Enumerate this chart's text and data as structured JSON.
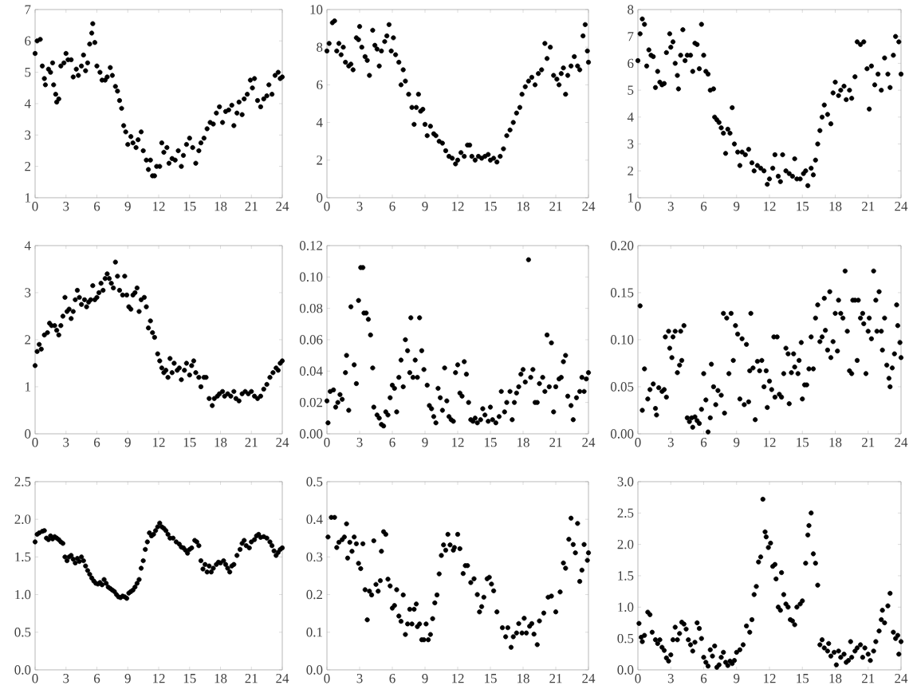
{
  "chart_data": [
    {
      "type": "scatter",
      "marker": "circle",
      "color": "#000000",
      "xlim": [
        0,
        24
      ],
      "xticks": [
        0,
        3,
        6,
        9,
        12,
        15,
        18,
        21,
        24
      ],
      "ylim": [
        1,
        7
      ],
      "yticks": [
        1,
        2,
        3,
        4,
        5,
        6,
        7
      ],
      "x": [
        0.0,
        0.2,
        0.5,
        0.7,
        0.9,
        1.0,
        1.3,
        1.5,
        1.7,
        1.8,
        2.0,
        2.1,
        2.3,
        2.5,
        2.8,
        3.0,
        3.2,
        3.5,
        3.7,
        4.0,
        4.2,
        4.5,
        4.7,
        4.9,
        5.1,
        5.3,
        5.5,
        5.6,
        5.8,
        6.0,
        6.3,
        6.5,
        6.8,
        7.0,
        7.3,
        7.5,
        7.8,
        8.0,
        8.2,
        8.4,
        8.6,
        8.8,
        9.0,
        9.3,
        9.5,
        9.8,
        10.0,
        10.3,
        10.5,
        10.8,
        11.0,
        11.2,
        11.4,
        11.6,
        11.8,
        12.1,
        12.3,
        12.5,
        12.8,
        13.0,
        13.3,
        13.6,
        13.9,
        14.2,
        14.4,
        14.7,
        15.0,
        15.3,
        15.6,
        15.9,
        16.1,
        16.4,
        16.7,
        17.0,
        17.3,
        17.6,
        17.9,
        18.2,
        18.5,
        18.8,
        19.1,
        19.3,
        19.6,
        19.8,
        20.1,
        20.3,
        20.6,
        20.9,
        21.1,
        21.3,
        21.6,
        21.9,
        22.2,
        22.5,
        22.7,
        23.0,
        23.3,
        23.6,
        23.8,
        24.0
      ],
      "values": [
        5.6,
        6.0,
        6.05,
        5.2,
        4.8,
        4.6,
        5.1,
        5.0,
        5.3,
        4.6,
        4.3,
        4.05,
        4.15,
        5.2,
        5.3,
        5.6,
        5.4,
        5.4,
        4.85,
        5.1,
        4.9,
        5.2,
        5.55,
        5.05,
        5.3,
        5.9,
        6.25,
        6.55,
        5.95,
        5.2,
        5.0,
        4.75,
        4.75,
        4.85,
        5.15,
        4.9,
        4.55,
        4.4,
        4.1,
        3.85,
        3.3,
        3.1,
        2.7,
        2.95,
        2.75,
        2.6,
        2.85,
        3.1,
        2.5,
        2.2,
        1.9,
        2.2,
        1.7,
        1.7,
        2.0,
        2.0,
        2.75,
        2.45,
        2.6,
        2.1,
        2.25,
        2.2,
        2.5,
        2.0,
        2.35,
        2.7,
        2.9,
        2.6,
        2.1,
        2.5,
        2.75,
        2.9,
        3.2,
        3.4,
        3.35,
        3.7,
        3.9,
        3.4,
        3.75,
        3.8,
        3.95,
        3.3,
        3.7,
        4.05,
        3.65,
        4.15,
        4.3,
        4.75,
        4.5,
        4.8,
        4.1,
        3.9,
        4.15,
        4.25,
        4.6,
        4.3,
        4.9,
        5.0,
        4.8,
        4.85
      ]
    },
    {
      "type": "scatter",
      "marker": "circle",
      "color": "#000000",
      "xlim": [
        0,
        24
      ],
      "xticks": [
        0,
        3,
        6,
        9,
        12,
        15,
        18,
        21,
        24
      ],
      "ylim": [
        0,
        10
      ],
      "yticks": [
        0,
        2,
        4,
        6,
        8,
        10
      ],
      "x": [
        0.0,
        0.2,
        0.5,
        0.7,
        0.9,
        1.1,
        1.3,
        1.5,
        1.7,
        2.0,
        2.2,
        2.4,
        2.7,
        2.9,
        3.0,
        3.2,
        3.5,
        3.7,
        3.9,
        4.2,
        4.4,
        4.6,
        4.8,
        5.0,
        5.3,
        5.5,
        5.7,
        5.9,
        6.1,
        6.3,
        6.6,
        6.8,
        7.0,
        7.2,
        7.5,
        7.8,
        8.0,
        8.2,
        8.4,
        8.6,
        8.8,
        9.0,
        9.2,
        9.5,
        9.8,
        10.0,
        10.3,
        10.6,
        10.9,
        11.2,
        11.5,
        11.8,
        12.0,
        12.3,
        12.6,
        12.9,
        13.1,
        13.3,
        13.6,
        13.9,
        14.2,
        14.5,
        14.8,
        15.0,
        15.3,
        15.6,
        15.9,
        16.2,
        16.5,
        16.8,
        17.1,
        17.4,
        17.7,
        17.9,
        18.2,
        18.5,
        18.8,
        19.1,
        19.4,
        19.7,
        20.0,
        20.2,
        20.5,
        20.8,
        21.1,
        21.3,
        21.5,
        21.7,
        21.9,
        22.1,
        22.4,
        22.7,
        23.0,
        23.2,
        23.5,
        23.7,
        23.9,
        24.0
      ],
      "values": [
        7.8,
        8.2,
        9.3,
        9.4,
        7.8,
        8.2,
        7.6,
        8.0,
        7.2,
        7.0,
        7.1,
        6.8,
        8.5,
        8.4,
        9.1,
        8.0,
        7.5,
        7.3,
        6.5,
        8.9,
        8.1,
        7.9,
        7.0,
        7.8,
        8.3,
        8.6,
        9.2,
        7.8,
        8.5,
        7.6,
        7.2,
        6.0,
        6.8,
        6.2,
        5.5,
        4.8,
        3.9,
        4.8,
        5.5,
        4.6,
        4.7,
        3.9,
        3.3,
        3.8,
        3.4,
        3.3,
        3.0,
        2.9,
        2.5,
        2.2,
        2.1,
        1.8,
        2.0,
        2.4,
        2.2,
        2.8,
        2.8,
        2.2,
        2.0,
        2.2,
        2.1,
        2.2,
        2.3,
        2.0,
        2.1,
        1.9,
        2.2,
        2.6,
        3.3,
        3.6,
        4.0,
        4.5,
        4.8,
        5.5,
        5.9,
        6.2,
        6.4,
        6.0,
        6.6,
        6.8,
        8.2,
        7.4,
        8.0,
        6.5,
        6.3,
        6.0,
        6.6,
        6.9,
        5.5,
        6.5,
        7.0,
        7.5,
        7.0,
        6.8,
        8.6,
        9.2,
        7.8,
        7.2
      ]
    },
    {
      "type": "scatter",
      "marker": "circle",
      "color": "#000000",
      "xlim": [
        0,
        24
      ],
      "xticks": [
        0,
        3,
        6,
        9,
        12,
        15,
        18,
        21,
        24
      ],
      "ylim": [
        1,
        8
      ],
      "yticks": [
        1,
        2,
        3,
        4,
        5,
        6,
        7,
        8
      ],
      "x": [
        0.0,
        0.2,
        0.4,
        0.6,
        0.8,
        1.0,
        1.2,
        1.4,
        1.6,
        1.8,
        2.0,
        2.2,
        2.4,
        2.6,
        2.9,
        3.0,
        3.2,
        3.4,
        3.6,
        3.7,
        3.9,
        4.1,
        4.3,
        4.5,
        4.8,
        5.0,
        5.2,
        5.4,
        5.6,
        5.8,
        6.0,
        6.2,
        6.4,
        6.6,
        6.9,
        7.0,
        7.2,
        7.4,
        7.6,
        7.8,
        8.0,
        8.2,
        8.4,
        8.6,
        8.8,
        9.1,
        9.3,
        9.5,
        9.8,
        10.1,
        10.4,
        10.6,
        10.9,
        11.2,
        11.5,
        11.8,
        12.0,
        12.3,
        12.5,
        12.8,
        13.0,
        13.2,
        13.5,
        13.8,
        14.1,
        14.3,
        14.5,
        14.8,
        15.1,
        15.3,
        15.5,
        15.8,
        16.0,
        16.2,
        16.4,
        16.6,
        16.8,
        17.0,
        17.3,
        17.6,
        17.8,
        18.0,
        18.3,
        18.5,
        18.8,
        19.0,
        19.3,
        19.5,
        19.8,
        20.0,
        20.3,
        20.6,
        20.9,
        21.1,
        21.3,
        21.6,
        21.9,
        22.2,
        22.5,
        22.8,
        23.0,
        23.3,
        23.5,
        23.8,
        24.0
      ],
      "values": [
        6.1,
        7.1,
        7.65,
        7.45,
        5.9,
        6.5,
        6.3,
        6.25,
        5.1,
        5.7,
        5.3,
        5.2,
        5.25,
        6.4,
        7.1,
        6.6,
        6.8,
        6.0,
        5.55,
        5.05,
        6.3,
        7.25,
        6.1,
        6.3,
        6.3,
        5.7,
        6.75,
        6.7,
        5.8,
        7.45,
        6.3,
        5.7,
        5.6,
        5.0,
        5.05,
        4.0,
        3.9,
        3.8,
        3.6,
        3.4,
        2.65,
        3.55,
        3.4,
        4.35,
        3.0,
        2.7,
        2.2,
        2.7,
        2.6,
        2.8,
        2.3,
        2.0,
        2.2,
        2.1,
        2.0,
        1.5,
        1.7,
        2.1,
        2.6,
        1.8,
        1.6,
        2.6,
        2.0,
        1.9,
        1.8,
        2.45,
        1.7,
        1.7,
        1.9,
        2.0,
        1.45,
        2.1,
        1.85,
        2.4,
        3.0,
        3.5,
        4.0,
        4.45,
        4.1,
        3.75,
        4.9,
        5.3,
        4.8,
        5.0,
        5.15,
        4.65,
        5.0,
        4.7,
        5.5,
        6.8,
        6.7,
        6.8,
        5.8,
        4.3,
        5.9,
        5.2,
        5.6,
        5.0,
        6.2,
        5.6,
        5.1,
        6.3,
        7.0,
        6.8,
        5.6
      ]
    },
    {
      "type": "scatter",
      "marker": "circle",
      "color": "#000000",
      "xlim": [
        0,
        24
      ],
      "xticks": [
        0,
        3,
        6,
        9,
        12,
        15,
        18,
        21,
        24
      ],
      "ylim": [
        0,
        4
      ],
      "yticks": [
        0,
        1,
        2,
        3,
        4
      ],
      "x": [
        0.0,
        0.2,
        0.4,
        0.6,
        0.9,
        1.2,
        1.4,
        1.6,
        1.9,
        2.1,
        2.3,
        2.5,
        2.7,
        2.9,
        3.1,
        3.3,
        3.5,
        3.7,
        3.9,
        4.1,
        4.3,
        4.5,
        4.8,
        5.0,
        5.2,
        5.4,
        5.6,
        5.8,
        6.0,
        6.2,
        6.4,
        6.6,
        6.8,
        7.0,
        7.2,
        7.4,
        7.6,
        7.8,
        8.0,
        8.2,
        8.5,
        8.7,
        8.9,
        9.1,
        9.3,
        9.5,
        9.7,
        9.9,
        10.1,
        10.3,
        10.6,
        10.8,
        11.0,
        11.2,
        11.4,
        11.6,
        11.9,
        12.1,
        12.3,
        12.5,
        12.7,
        12.9,
        13.1,
        13.3,
        13.5,
        13.8,
        14.0,
        14.2,
        14.5,
        14.7,
        15.0,
        15.2,
        15.4,
        15.6,
        15.9,
        16.1,
        16.4,
        16.6,
        16.9,
        17.2,
        17.4,
        17.7,
        17.9,
        18.2,
        18.4,
        18.7,
        19.0,
        19.3,
        19.5,
        19.8,
        20.1,
        20.4,
        20.7,
        21.0,
        21.3,
        21.6,
        21.9,
        22.2,
        22.5,
        22.8,
        23.1,
        23.4,
        23.6,
        23.8,
        24.0
      ],
      "values": [
        1.45,
        1.75,
        1.9,
        1.8,
        2.1,
        2.15,
        2.35,
        2.3,
        2.3,
        2.2,
        2.1,
        2.3,
        2.5,
        2.9,
        2.6,
        2.65,
        2.45,
        2.6,
        2.85,
        3.05,
        2.9,
        2.75,
        2.85,
        2.7,
        2.8,
        2.85,
        3.15,
        2.85,
        2.9,
        3.0,
        3.2,
        3.05,
        3.3,
        3.4,
        3.3,
        3.2,
        3.1,
        3.65,
        3.35,
        3.05,
        2.95,
        3.35,
        2.95,
        2.7,
        2.65,
        2.95,
        3.0,
        3.1,
        2.6,
        2.85,
        2.9,
        2.7,
        2.25,
        2.4,
        2.15,
        2.05,
        1.7,
        1.55,
        1.4,
        1.3,
        1.35,
        1.2,
        1.6,
        1.3,
        1.5,
        1.35,
        1.4,
        1.15,
        1.35,
        1.5,
        1.25,
        1.45,
        1.55,
        1.3,
        1.2,
        1.0,
        1.2,
        1.2,
        0.75,
        0.6,
        0.75,
        0.8,
        0.85,
        0.9,
        0.8,
        0.85,
        0.8,
        0.9,
        0.75,
        0.7,
        0.85,
        0.9,
        0.85,
        0.9,
        0.8,
        0.75,
        0.8,
        0.95,
        1.05,
        1.2,
        1.3,
        1.4,
        1.35,
        1.5,
        1.55
      ]
    },
    {
      "type": "scatter",
      "marker": "circle",
      "color": "#000000",
      "xlim": [
        0,
        24
      ],
      "xticks": [
        0,
        3,
        6,
        9,
        12,
        15,
        18,
        21,
        24
      ],
      "ylim": [
        0,
        0.12
      ],
      "yticks": [
        {
          "value": 0,
          "label": "0.00"
        },
        {
          "value": 0.02,
          "label": "0.02"
        },
        {
          "value": 0.04,
          "label": "0.04"
        },
        {
          "value": 0.06,
          "label": "0.06"
        },
        {
          "value": 0.08,
          "label": "0.08"
        },
        {
          "value": 0.1,
          "label": "0.10"
        },
        {
          "value": 0.12,
          "label": "0.12"
        }
      ],
      "x": [
        0.0,
        0.1,
        0.3,
        0.6,
        0.8,
        1.0,
        1.2,
        1.4,
        1.7,
        1.8,
        2.0,
        2.2,
        2.5,
        2.7,
        2.9,
        3.1,
        3.3,
        3.4,
        3.6,
        3.8,
        4.0,
        4.2,
        4.3,
        4.6,
        4.8,
        5.0,
        5.2,
        5.4,
        5.6,
        5.8,
        6.0,
        6.2,
        6.4,
        6.6,
        6.8,
        7.0,
        7.2,
        7.4,
        7.6,
        7.7,
        7.9,
        8.1,
        8.3,
        8.5,
        8.7,
        8.9,
        9.2,
        9.4,
        9.6,
        9.8,
        10.0,
        10.2,
        10.4,
        10.6,
        10.8,
        11.0,
        11.2,
        11.4,
        11.6,
        11.8,
        12.0,
        12.2,
        12.4,
        12.6,
        12.8,
        13.0,
        13.2,
        13.4,
        13.6,
        13.8,
        14.1,
        14.3,
        14.5,
        14.8,
        15.0,
        15.2,
        15.5,
        15.8,
        16.0,
        16.3,
        16.5,
        16.8,
        17.0,
        17.2,
        17.4,
        17.6,
        17.8,
        18.0,
        18.2,
        18.5,
        18.7,
        18.9,
        19.1,
        19.3,
        19.5,
        19.8,
        20.0,
        20.2,
        20.4,
        20.6,
        20.8,
        21.0,
        21.3,
        21.5,
        21.7,
        21.9,
        22.1,
        22.4,
        22.6,
        22.9,
        23.2,
        23.4,
        23.6,
        23.8,
        24.0
      ],
      "values": [
        0.021,
        0.007,
        0.027,
        0.028,
        0.017,
        0.02,
        0.025,
        0.022,
        0.039,
        0.05,
        0.015,
        0.081,
        0.044,
        0.032,
        0.085,
        0.106,
        0.106,
        0.077,
        0.077,
        0.073,
        0.063,
        0.042,
        0.017,
        0.012,
        0.01,
        0.006,
        0.005,
        0.014,
        0.012,
        0.023,
        0.031,
        0.029,
        0.014,
        0.036,
        0.047,
        0.03,
        0.06,
        0.053,
        0.039,
        0.074,
        0.036,
        0.047,
        0.036,
        0.074,
        0.053,
        0.041,
        0.031,
        0.018,
        0.016,
        0.011,
        0.007,
        0.029,
        0.023,
        0.015,
        0.042,
        0.021,
        0.011,
        0.009,
        0.008,
        0.039,
        0.044,
        0.026,
        0.024,
        0.046,
        0.038,
        0.02,
        0.009,
        0.008,
        0.01,
        0.007,
        0.009,
        0.016,
        0.012,
        0.008,
        0.017,
        0.009,
        0.007,
        0.011,
        0.027,
        0.014,
        0.02,
        0.027,
        0.009,
        0.02,
        0.026,
        0.03,
        0.038,
        0.041,
        0.033,
        0.111,
        0.036,
        0.041,
        0.02,
        0.02,
        0.032,
        0.036,
        0.027,
        0.063,
        0.03,
        0.058,
        0.014,
        0.03,
        0.035,
        0.036,
        0.046,
        0.05,
        0.024,
        0.018,
        0.009,
        0.023,
        0.027,
        0.036,
        0.027,
        0.035,
        0.039
      ]
    },
    {
      "type": "scatter",
      "marker": "circle",
      "color": "#000000",
      "xlim": [
        0,
        24
      ],
      "xticks": [
        0,
        3,
        6,
        9,
        12,
        15,
        18,
        21,
        24
      ],
      "ylim": [
        0,
        0.2
      ],
      "yticks": [
        {
          "value": 0,
          "label": "0.00"
        },
        {
          "value": 0.05,
          "label": "0.05"
        },
        {
          "value": 0.1,
          "label": "0.10"
        },
        {
          "value": 0.15,
          "label": "0.15"
        },
        {
          "value": 0.2,
          "label": "0.20"
        }
      ],
      "x": [
        0.2,
        0.4,
        0.6,
        0.9,
        1.1,
        1.4,
        1.6,
        1.7,
        1.9,
        2.2,
        2.4,
        2.6,
        2.5,
        2.8,
        2.9,
        3.1,
        3.2,
        3.4,
        3.6,
        3.8,
        3.9,
        4.0,
        4.2,
        4.5,
        4.7,
        4.9,
        5.0,
        5.2,
        5.4,
        5.6,
        5.8,
        6.0,
        6.2,
        6.4,
        6.6,
        6.7,
        6.9,
        7.1,
        7.3,
        7.6,
        7.8,
        7.9,
        8.1,
        8.3,
        8.5,
        8.7,
        8.9,
        9.1,
        9.3,
        9.5,
        9.7,
        9.9,
        10.1,
        10.2,
        10.3,
        10.5,
        10.7,
        10.9,
        11.1,
        11.3,
        11.5,
        11.7,
        11.8,
        12.0,
        12.2,
        12.4,
        12.5,
        12.7,
        12.9,
        13.1,
        13.3,
        13.5,
        13.7,
        13.8,
        14.0,
        14.2,
        14.3,
        14.6,
        14.7,
        14.9,
        15.0,
        15.2,
        15.4,
        15.6,
        15.8,
        16.0,
        16.2,
        16.4,
        16.6,
        16.8,
        17.0,
        17.1,
        17.3,
        17.5,
        17.6,
        17.8,
        18.0,
        18.2,
        18.3,
        18.5,
        18.7,
        18.9,
        19.1,
        19.3,
        19.5,
        19.6,
        19.8,
        20.0,
        20.1,
        20.3,
        20.5,
        20.6,
        20.8,
        21.0,
        21.1,
        21.3,
        21.5,
        21.7,
        21.8,
        22.0,
        22.2,
        22.3,
        22.5,
        22.7,
        22.9,
        23.0,
        23.2,
        23.4,
        23.6,
        23.7,
        23.9,
        24.0
      ],
      "values": [
        0.136,
        0.025,
        0.069,
        0.037,
        0.047,
        0.053,
        0.027,
        0.02,
        0.049,
        0.045,
        0.047,
        0.039,
        0.103,
        0.109,
        0.091,
        0.081,
        0.103,
        0.109,
        0.065,
        0.073,
        0.109,
        0.078,
        0.115,
        0.017,
        0.013,
        0.017,
        0.007,
        0.018,
        0.014,
        0.011,
        0.026,
        0.064,
        0.036,
        0.002,
        0.017,
        0.074,
        0.05,
        0.031,
        0.046,
        0.041,
        0.128,
        0.022,
        0.123,
        0.064,
        0.128,
        0.078,
        0.115,
        0.106,
        0.037,
        0.101,
        0.031,
        0.095,
        0.034,
        0.067,
        0.128,
        0.07,
        0.015,
        0.077,
        0.067,
        0.078,
        0.05,
        0.067,
        0.028,
        0.056,
        0.047,
        0.103,
        0.039,
        0.103,
        0.042,
        0.039,
        0.064,
        0.091,
        0.085,
        0.032,
        0.065,
        0.085,
        0.071,
        0.064,
        0.078,
        0.097,
        0.037,
        0.052,
        0.052,
        0.069,
        0.103,
        0.069,
        0.123,
        0.137,
        0.098,
        0.103,
        0.144,
        0.11,
        0.089,
        0.151,
        0.081,
        0.098,
        0.128,
        0.088,
        0.142,
        0.128,
        0.123,
        0.173,
        0.109,
        0.067,
        0.064,
        0.142,
        0.142,
        0.078,
        0.142,
        0.123,
        0.128,
        0.117,
        0.064,
        0.109,
        0.123,
        0.101,
        0.173,
        0.142,
        0.109,
        0.151,
        0.109,
        0.089,
        0.123,
        0.073,
        0.059,
        0.05,
        0.07,
        0.085,
        0.137,
        0.115,
        0.097,
        0.081
      ]
    },
    {
      "type": "scatter",
      "marker": "circle",
      "color": "#000000",
      "xlim": [
        0,
        24
      ],
      "xticks": [
        0,
        3,
        6,
        9,
        12,
        15,
        18,
        21,
        24
      ],
      "ylim": [
        0,
        2.5
      ],
      "yticks": [
        {
          "value": 0,
          "label": "0.0"
        },
        {
          "value": 0.5,
          "label": "0.5"
        },
        {
          "value": 1,
          "label": "1.0"
        },
        {
          "value": 1.5,
          "label": "1.5"
        },
        {
          "value": 2,
          "label": "2.0"
        },
        {
          "value": 2.5,
          "label": "2.5"
        }
      ],
      "x": [
        0.0,
        0.2,
        0.4,
        0.7,
        0.9,
        1.1,
        1.3,
        1.5,
        1.7,
        1.9,
        2.1,
        2.3,
        2.5,
        2.7,
        2.9,
        3.1,
        3.3,
        3.5,
        3.7,
        3.9,
        4.1,
        4.3,
        4.5,
        4.7,
        4.9,
        5.1,
        5.3,
        5.5,
        5.7,
        5.9,
        6.1,
        6.3,
        6.5,
        6.7,
        6.9,
        7.1,
        7.3,
        7.5,
        7.7,
        7.9,
        8.1,
        8.3,
        8.5,
        8.7,
        8.9,
        9.1,
        9.3,
        9.5,
        9.7,
        9.9,
        10.1,
        10.3,
        10.5,
        10.7,
        10.9,
        11.1,
        11.3,
        11.5,
        11.7,
        11.9,
        12.1,
        12.3,
        12.5,
        12.7,
        12.9,
        13.1,
        13.4,
        13.7,
        14.0,
        14.2,
        14.4,
        14.6,
        14.8,
        15.0,
        15.2,
        15.5,
        15.7,
        15.9,
        16.1,
        16.3,
        16.5,
        16.7,
        16.9,
        17.1,
        17.3,
        17.6,
        17.8,
        18.0,
        18.3,
        18.5,
        18.7,
        18.9,
        19.1,
        19.3,
        19.6,
        19.9,
        20.1,
        20.3,
        20.5,
        20.8,
        21.0,
        21.3,
        21.5,
        21.7,
        21.9,
        22.2,
        22.5,
        22.8,
        23.0,
        23.2,
        23.4,
        23.6,
        23.8,
        24.0
      ],
      "values": [
        1.7,
        1.8,
        1.82,
        1.84,
        1.85,
        1.75,
        1.73,
        1.78,
        1.74,
        1.77,
        1.75,
        1.73,
        1.7,
        1.68,
        1.5,
        1.45,
        1.5,
        1.52,
        1.47,
        1.42,
        1.48,
        1.44,
        1.5,
        1.45,
        1.38,
        1.32,
        1.27,
        1.22,
        1.18,
        1.15,
        1.14,
        1.16,
        1.13,
        1.2,
        1.15,
        1.1,
        1.08,
        1.06,
        1.04,
        1.0,
        0.97,
        0.96,
        0.98,
        0.97,
        0.95,
        1.02,
        1.04,
        1.06,
        1.1,
        1.15,
        1.2,
        1.35,
        1.45,
        1.6,
        1.7,
        1.82,
        1.78,
        1.8,
        1.85,
        1.9,
        1.95,
        1.9,
        1.88,
        1.85,
        1.8,
        1.75,
        1.75,
        1.7,
        1.67,
        1.63,
        1.62,
        1.59,
        1.55,
        1.6,
        1.62,
        1.72,
        1.7,
        1.65,
        1.45,
        1.34,
        1.4,
        1.3,
        1.38,
        1.3,
        1.35,
        1.4,
        1.43,
        1.42,
        1.45,
        1.4,
        1.35,
        1.3,
        1.38,
        1.4,
        1.52,
        1.6,
        1.68,
        1.72,
        1.65,
        1.62,
        1.7,
        1.73,
        1.78,
        1.8,
        1.76,
        1.77,
        1.75,
        1.7,
        1.65,
        1.58,
        1.52,
        1.56,
        1.6,
        1.62
      ]
    },
    {
      "type": "scatter",
      "marker": "circle",
      "color": "#000000",
      "xlim": [
        0,
        24
      ],
      "xticks": [
        0,
        3,
        6,
        9,
        12,
        15,
        18,
        21,
        24
      ],
      "ylim": [
        0,
        0.5
      ],
      "yticks": [
        {
          "value": 0,
          "label": "0.0"
        },
        {
          "value": 0.1,
          "label": "0.1"
        },
        {
          "value": 0.2,
          "label": "0.2"
        },
        {
          "value": 0.3,
          "label": "0.3"
        },
        {
          "value": 0.4,
          "label": "0.4"
        },
        {
          "value": 0.5,
          "label": "0.5"
        }
      ],
      "x": [
        0.1,
        0.4,
        0.7,
        0.9,
        1.1,
        1.4,
        1.6,
        1.8,
        1.9,
        2.1,
        2.3,
        2.5,
        2.7,
        2.9,
        3.1,
        3.3,
        3.5,
        3.7,
        3.9,
        4.1,
        4.3,
        4.5,
        4.7,
        4.9,
        5.0,
        5.2,
        5.4,
        5.6,
        5.8,
        6.0,
        6.2,
        6.4,
        6.6,
        6.8,
        7.0,
        7.2,
        7.4,
        7.6,
        7.8,
        8.0,
        8.2,
        8.3,
        8.5,
        8.7,
        8.9,
        9.1,
        9.3,
        9.5,
        9.7,
        9.9,
        10.1,
        10.3,
        10.5,
        10.7,
        10.9,
        11.1,
        11.3,
        11.6,
        11.7,
        12.0,
        12.2,
        12.5,
        12.7,
        12.9,
        13.2,
        13.5,
        13.8,
        14.0,
        14.2,
        14.4,
        14.7,
        14.9,
        15.1,
        15.3,
        15.6,
        16.1,
        16.4,
        16.6,
        16.9,
        17.1,
        17.4,
        17.6,
        17.9,
        18.1,
        18.3,
        18.6,
        18.8,
        19.0,
        19.3,
        19.5,
        19.9,
        20.3,
        20.6,
        21.0,
        21.4,
        21.7,
        21.9,
        22.2,
        22.4,
        22.6,
        22.8,
        23.0,
        23.2,
        23.4,
        23.6,
        23.9,
        24.0
      ],
      "values": [
        0.353,
        0.405,
        0.405,
        0.325,
        0.339,
        0.346,
        0.353,
        0.388,
        0.297,
        0.339,
        0.315,
        0.353,
        0.335,
        0.283,
        0.269,
        0.335,
        0.213,
        0.133,
        0.209,
        0.199,
        0.343,
        0.227,
        0.209,
        0.237,
        0.315,
        0.367,
        0.36,
        0.241,
        0.223,
        0.164,
        0.171,
        0.213,
        0.143,
        0.129,
        0.199,
        0.094,
        0.122,
        0.161,
        0.122,
        0.161,
        0.175,
        0.115,
        0.122,
        0.08,
        0.08,
        0.122,
        0.08,
        0.094,
        0.136,
        0.178,
        0.199,
        0.255,
        0.304,
        0.332,
        0.318,
        0.36,
        0.332,
        0.318,
        0.325,
        0.36,
        0.322,
        0.256,
        0.277,
        0.277,
        0.232,
        0.242,
        0.2,
        0.154,
        0.168,
        0.193,
        0.242,
        0.246,
        0.228,
        0.21,
        0.154,
        0.112,
        0.088,
        0.112,
        0.06,
        0.088,
        0.098,
        0.123,
        0.098,
        0.137,
        0.098,
        0.116,
        0.123,
        0.095,
        0.067,
        0.13,
        0.151,
        0.193,
        0.196,
        0.154,
        0.207,
        0.284,
        0.27,
        0.347,
        0.403,
        0.333,
        0.311,
        0.389,
        0.235,
        0.265,
        0.333,
        0.291,
        0.311
      ]
    },
    {
      "type": "scatter",
      "marker": "circle",
      "color": "#000000",
      "xlim": [
        0,
        24
      ],
      "xticks": [
        0,
        3,
        6,
        9,
        12,
        15,
        18,
        21,
        24
      ],
      "ylim": [
        0,
        3
      ],
      "yticks": [
        {
          "value": 0,
          "label": "0.0"
        },
        {
          "value": 0.5,
          "label": "0.5"
        },
        {
          "value": 1,
          "label": "1.0"
        },
        {
          "value": 1.5,
          "label": "1.5"
        },
        {
          "value": 2,
          "label": "2.0"
        },
        {
          "value": 2.5,
          "label": "2.5"
        },
        {
          "value": 3,
          "label": "3.0"
        }
      ],
      "x": [
        0.1,
        0.3,
        0.4,
        0.6,
        0.9,
        1.1,
        1.3,
        1.6,
        1.8,
        2.0,
        2.2,
        2.4,
        2.6,
        2.8,
        3.0,
        3.2,
        3.4,
        3.6,
        3.8,
        4.0,
        4.2,
        4.4,
        4.6,
        4.8,
        5.0,
        5.2,
        5.4,
        5.6,
        5.8,
        6.0,
        6.2,
        6.4,
        6.6,
        6.8,
        7.0,
        7.2,
        7.4,
        7.6,
        7.8,
        8.0,
        8.2,
        8.4,
        8.6,
        8.8,
        9.0,
        9.3,
        9.6,
        9.9,
        10.2,
        10.4,
        10.6,
        10.8,
        11.0,
        11.2,
        11.4,
        11.6,
        11.7,
        11.9,
        12.1,
        12.3,
        12.5,
        12.6,
        12.8,
        13.0,
        13.1,
        13.3,
        13.5,
        13.7,
        13.9,
        14.1,
        14.3,
        14.5,
        14.8,
        15.0,
        15.3,
        15.5,
        15.6,
        15.8,
        16.0,
        16.2,
        16.4,
        16.6,
        16.8,
        17.0,
        17.3,
        17.4,
        17.6,
        17.9,
        18.1,
        18.3,
        18.5,
        18.8,
        19.0,
        19.2,
        19.4,
        19.5,
        19.8,
        20.0,
        20.3,
        20.5,
        20.7,
        21.0,
        21.2,
        21.5,
        21.7,
        22.0,
        22.2,
        22.3,
        22.5,
        22.8,
        23.0,
        23.3,
        23.5,
        23.7,
        23.8,
        24.0
      ],
      "values": [
        0.74,
        0.52,
        0.45,
        0.55,
        0.92,
        0.88,
        0.6,
        0.48,
        0.42,
        0.48,
        0.36,
        0.31,
        0.19,
        0.14,
        0.24,
        0.48,
        0.68,
        0.48,
        0.58,
        0.76,
        0.73,
        0.65,
        0.48,
        0.4,
        0.3,
        0.44,
        0.75,
        0.66,
        0.5,
        0.2,
        0.12,
        0.06,
        0.32,
        0.22,
        0.38,
        0.04,
        0.08,
        0.2,
        0.28,
        0.12,
        0.07,
        0.14,
        0.1,
        0.15,
        0.28,
        0.32,
        0.4,
        0.7,
        0.6,
        0.8,
        1.2,
        1.33,
        1.72,
        1.8,
        2.72,
        2.2,
        2.12,
        1.95,
        2.02,
        1.65,
        1.68,
        1.45,
        1.0,
        0.95,
        1.55,
        1.2,
        1.05,
        1.0,
        0.8,
        0.78,
        0.72,
        1.0,
        1.05,
        1.1,
        1.7,
        2.15,
        2.3,
        2.5,
        1.85,
        1.7,
        1.35,
        0.4,
        0.48,
        0.35,
        0.3,
        0.42,
        0.22,
        0.28,
        0.08,
        0.3,
        0.2,
        0.25,
        0.12,
        0.15,
        0.45,
        0.2,
        0.3,
        0.35,
        0.4,
        0.2,
        0.35,
        0.25,
        0.15,
        0.3,
        0.45,
        0.62,
        0.8,
        0.95,
        0.75,
        1.02,
        1.22,
        0.6,
        0.5,
        0.55,
        0.25,
        0.45
      ]
    }
  ]
}
